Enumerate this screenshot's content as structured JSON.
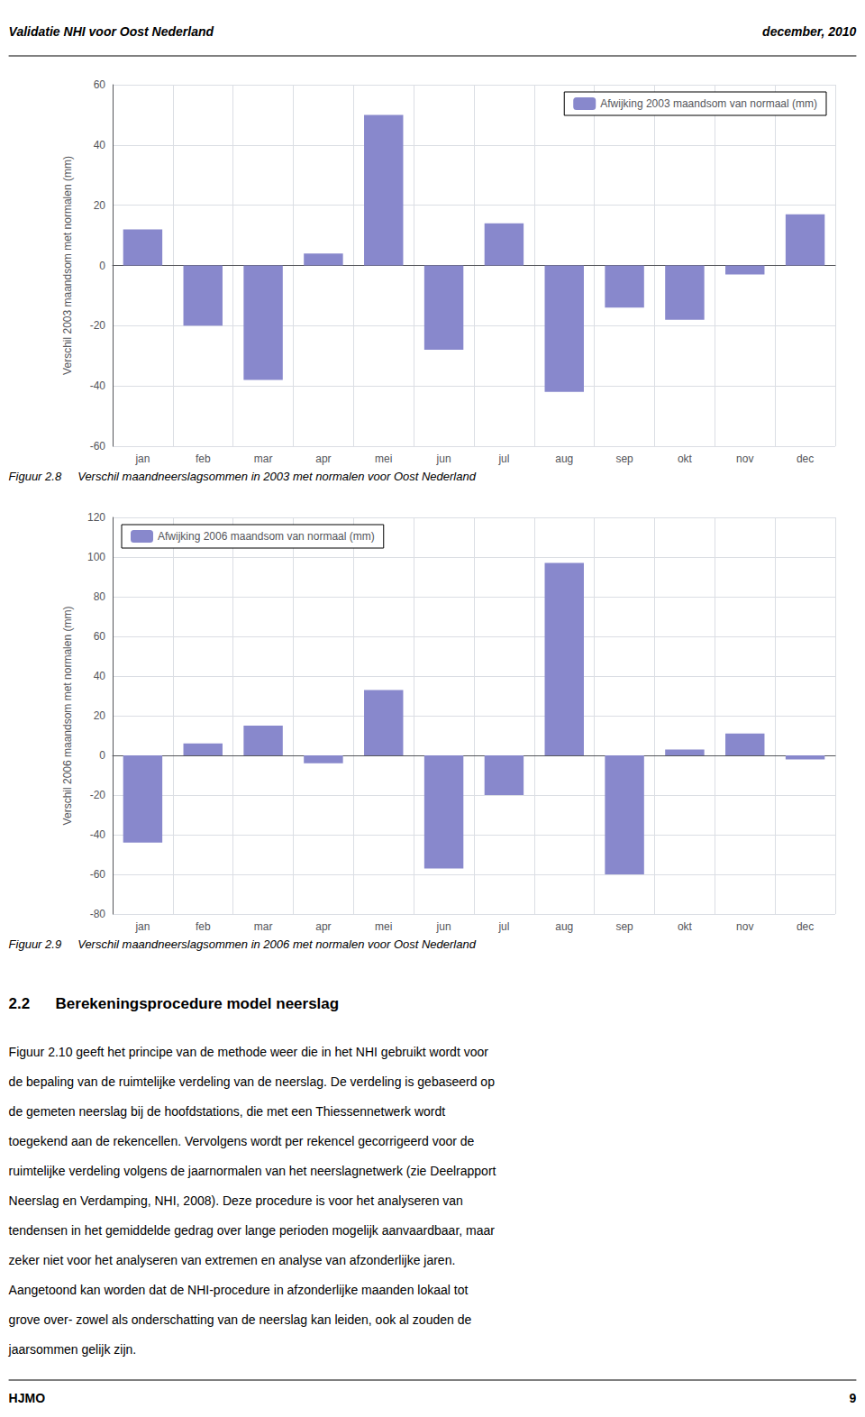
{
  "chart_data": [
    {
      "type": "bar",
      "categories": [
        "jan",
        "feb",
        "mar",
        "apr",
        "mei",
        "jun",
        "jul",
        "aug",
        "sep",
        "okt",
        "nov",
        "dec"
      ],
      "series": [
        {
          "name": "Afwijking 2003 maandsom van normaal (mm)",
          "color": "#8888cc",
          "values": [
            12,
            -20,
            -38,
            4,
            50,
            -28,
            14,
            -42,
            -14,
            -18,
            -3,
            17
          ]
        }
      ],
      "ylabel": "Verschil 2003 maandsom met normalen (mm)",
      "ylim": [
        -60,
        60
      ],
      "yticks": [
        -60,
        -40,
        -20,
        0,
        20,
        40,
        60
      ],
      "grid": true,
      "legend": "upper right",
      "annotations": [
        "Validatie NHI voor Oost Nederland",
        "december, 2010",
        "Figuur 2.8     Verschil maandneerslagsommen in 2003 met normalen voor Oost Nederland"
      ]
    },
    {
      "type": "bar",
      "categories": [
        "jan",
        "feb",
        "mar",
        "apr",
        "mei",
        "jun",
        "jul",
        "aug",
        "sep",
        "okt",
        "nov",
        "dec"
      ],
      "series": [
        {
          "name": "Afwijking 2006 maandsom van normaal (mm)",
          "color": "#8888cc",
          "values": [
            -44,
            6,
            15,
            -4,
            33,
            -57,
            -20,
            97,
            -60,
            3,
            11,
            -2
          ]
        }
      ],
      "ylabel": "Verschil 2006 maandsom met normalen (mm)",
      "ylim": [
        -80,
        120
      ],
      "yticks": [
        -80,
        -60,
        -40,
        -20,
        0,
        20,
        40,
        60,
        80,
        100,
        120
      ],
      "grid": true,
      "legend": "upper left",
      "annotations": [
        "Figuur 2.9     Verschil maandneerslagsommen in 2006 met normalen voor Oost Nederland",
        "2.2      Berekeningsprocedure model neerslag",
        "Figuur 2.10 geeft het principe van de methode weer die in het NHI gebruikt wordt voor",
        "de bepaling van de ruimtelijke verdeling van de neerslag. De verdeling is gebaseerd op",
        "de gemeten neerslag bij de hoofdstations, die met een Thiessennetwerk wordt",
        "toegekend aan de rekencellen. Vervolgens wordt per rekencel gecorrigeerd voor de",
        "ruimtelijke verdeling volgens de jaarnormalen van het neerslagnetwerk (zie Deelrapport",
        "Neerslag en Verdamping, NHI, 2008). Deze procedure is voor het analyseren van",
        "tendensen in het gemiddelde gedrag over lange perioden mogelijk aanvaardbaar, maar",
        "zeker niet voor het analyseren van extremen en analyse van afzonderlijke jaren.",
        "Aangetoond kan worden dat de NHI-procedure in afzonderlijke maanden lokaal tot",
        "grove over- zowel als onderschatting van de neerslag kan leiden, ook al zouden de",
        "jaarsommen gelijk zijn.",
        "HJMO",
        "9"
      ]
    }
  ]
}
